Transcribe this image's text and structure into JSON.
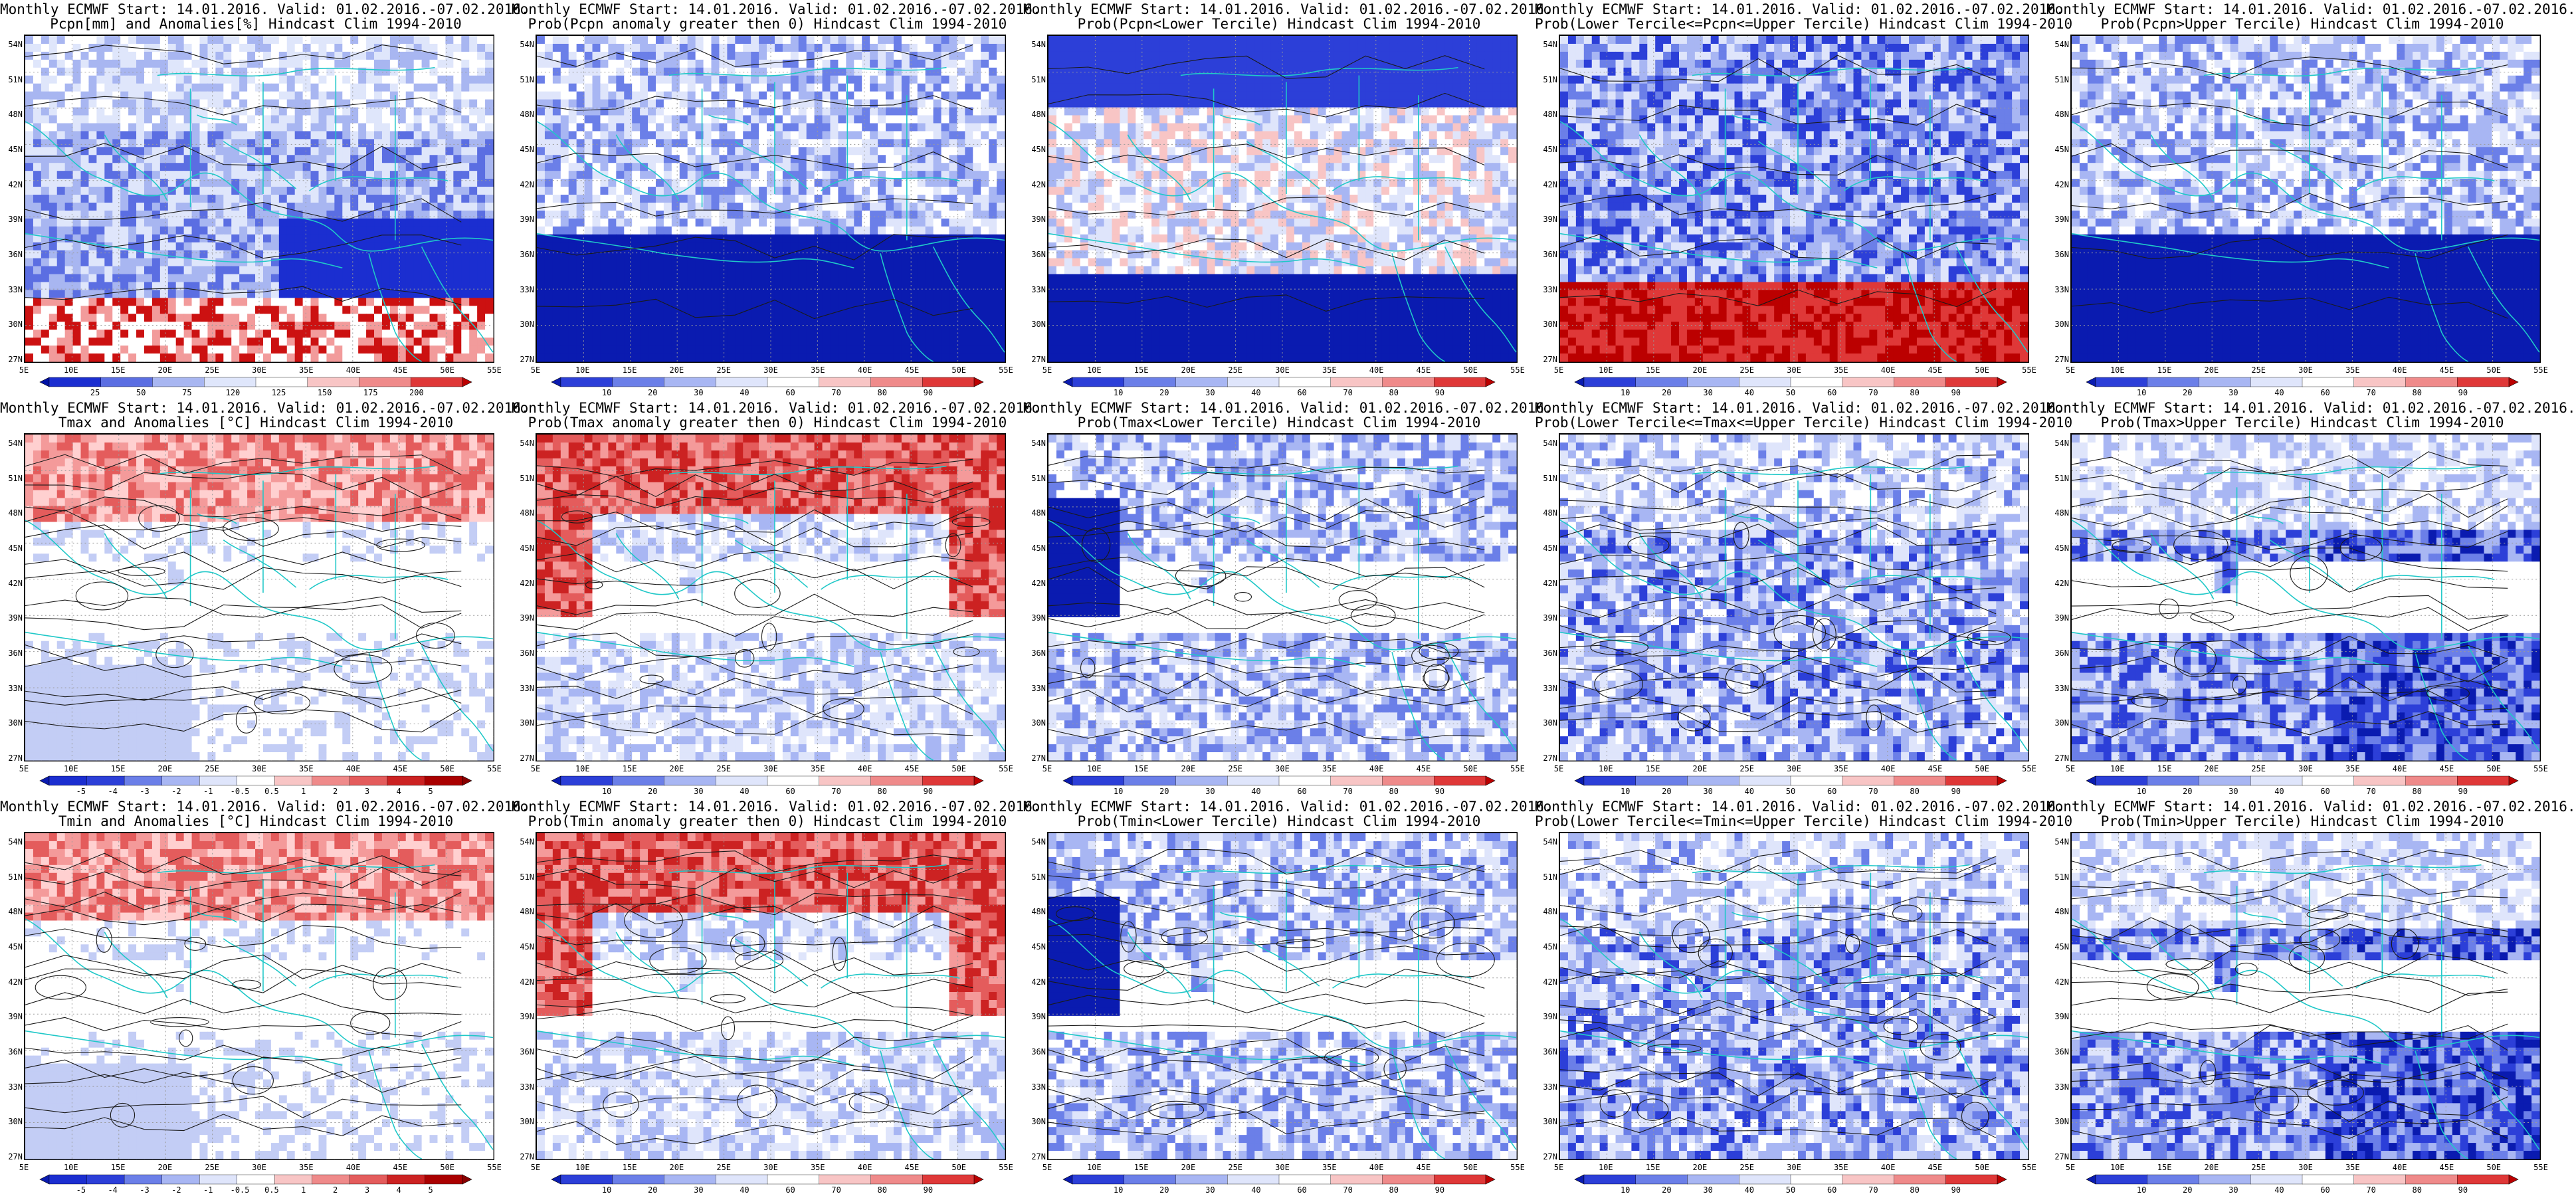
{
  "palettes": {
    "anom_precip": [
      "#ffffff",
      "#dfe6fb",
      "#a8b6f1",
      "#5b6ee2",
      "#1b2ed0",
      "#0012a6"
    ],
    "prob": [
      "#0a1bb0",
      "#2c3fd8",
      "#6b7fe8",
      "#a8b6f3",
      "#dfe5fb",
      "#ffffff",
      "#f8c5c5",
      "#ef8a8a",
      "#df3838",
      "#bb0000"
    ],
    "land_pos": [
      "#ffd0d0",
      "#f49a9a",
      "#e45c5c",
      "#cc2222"
    ],
    "lines": "#1a1a1a",
    "coast": "#20c8c8"
  },
  "lat_labels": [
    "54N",
    "51N",
    "48N",
    "45N",
    "42N",
    "39N",
    "36N",
    "33N",
    "30N",
    "27N"
  ],
  "lon_labels": [
    "5E",
    "10E",
    "15E",
    "20E",
    "25E",
    "30E",
    "35E",
    "40E",
    "45E",
    "50E",
    "55E"
  ],
  "panels": [
    {
      "title1": "Monthly ECMWF Start: 14.01.2016. Valid: 01.02.2016.-07.02.2016.",
      "title2": "Pcpn[mm] and Anomalies[%] Hindcast Clim 1994-2010",
      "type": "pcpn_anom",
      "cbar": [
        "25",
        "50",
        "75",
        "120",
        "125",
        "150",
        "175",
        "200"
      ]
    },
    {
      "title1": "Monthly ECMWF Start: 14.01.2016. Valid: 01.02.2016.-07.02.2016.",
      "title2": "Prob(Pcpn anomaly greater then 0) Hindcast Clim 1994-2010",
      "type": "prob_low",
      "cbar": [
        "10",
        "20",
        "30",
        "40",
        "60",
        "70",
        "80",
        "90"
      ]
    },
    {
      "title1": "Monthly ECMWF Start: 14.01.2016. Valid: 01.02.2016.-07.02.2016.",
      "title2": "Prob(Pcpn<Lower Tercile) Hindcast Clim 1994-2010",
      "type": "prob_lower_pcpn",
      "cbar": [
        "10",
        "20",
        "30",
        "40",
        "60",
        "70",
        "80",
        "90"
      ]
    },
    {
      "title1": "Monthly ECMWF Start: 14.01.2016. Valid: 01.02.2016.-07.02.2016.",
      "title2": "Prob(Lower Tercile<=Pcpn<=Upper Tercile) Hindcast Clim 1994-2010",
      "type": "prob_mid_pcpn",
      "cbar": [
        "10",
        "20",
        "30",
        "40",
        "50",
        "60",
        "70",
        "80",
        "90"
      ]
    },
    {
      "title1": "Monthly ECMWF Start: 14.01.2016. Valid: 01.02.2016.-07.02.2016.",
      "title2": "Prob(Pcpn>Upper Tercile) Hindcast Clim 1994-2010",
      "type": "prob_low",
      "cbar": [
        "10",
        "20",
        "30",
        "40",
        "60",
        "70",
        "80",
        "90"
      ]
    },
    {
      "title1": "Monthly ECMWF Start: 14.01.2016. Valid: 01.02.2016.-07.02.2016.",
      "title2": "Tmax and Anomalies [°C] Hindcast Clim 1994-2010",
      "type": "temp_anom",
      "cbar": [
        "-5",
        "-4",
        "-3",
        "-2",
        "-1",
        "-0.5",
        "0.5",
        "1",
        "2",
        "3",
        "4",
        "5"
      ]
    },
    {
      "title1": "Monthly ECMWF Start: 14.01.2016. Valid: 01.02.2016.-07.02.2016.",
      "title2": "Prob(Tmax anomaly greater then 0) Hindcast Clim 1994-2010",
      "type": "prob_high_north",
      "cbar": [
        "10",
        "20",
        "30",
        "40",
        "60",
        "70",
        "80",
        "90"
      ]
    },
    {
      "title1": "Monthly ECMWF Start: 14.01.2016. Valid: 01.02.2016.-07.02.2016.",
      "title2": "Prob(Tmax<Lower Tercile) Hindcast Clim 1994-2010",
      "type": "prob_lower_t",
      "cbar": [
        "10",
        "20",
        "30",
        "40",
        "60",
        "70",
        "80",
        "90"
      ]
    },
    {
      "title1": "Monthly ECMWF Start: 14.01.2016. Valid: 01.02.2016.-07.02.2016.",
      "title2": "Prob(Lower Tercile<=Tmax<=Upper Tercile) Hindcast Clim 1994-2010",
      "type": "prob_mid_t",
      "cbar": [
        "10",
        "20",
        "30",
        "40",
        "50",
        "60",
        "70",
        "80",
        "90"
      ]
    },
    {
      "title1": "Monthly ECMWF Start: 14.01.2016. Valid: 01.02.2016.-07.02.2016.",
      "title2": "Prob(Tmax>Upper Tercile) Hindcast Clim 1994-2010",
      "type": "prob_upper_t",
      "cbar": [
        "10",
        "20",
        "30",
        "40",
        "60",
        "70",
        "80",
        "90"
      ]
    },
    {
      "title1": "Monthly ECMWF Start: 14.01.2016. Valid: 01.02.2016.-07.02.2016.",
      "title2": "Tmin and Anomalies [°C] Hindcast Clim 1994-2010",
      "type": "temp_anom",
      "cbar": [
        "-5",
        "-4",
        "-3",
        "-2",
        "-1",
        "-0.5",
        "0.5",
        "1",
        "2",
        "3",
        "4",
        "5"
      ]
    },
    {
      "title1": "Monthly ECMWF Start: 14.01.2016. Valid: 01.02.2016.-07.02.2016.",
      "title2": "Prob(Tmin anomaly greater then 0) Hindcast Clim 1994-2010",
      "type": "prob_high_north",
      "cbar": [
        "10",
        "20",
        "30",
        "40",
        "60",
        "70",
        "80",
        "90"
      ]
    },
    {
      "title1": "Monthly ECMWF Start: 14.01.2016. Valid: 01.02.2016.-07.02.2016.",
      "title2": "Prob(Tmin<Lower Tercile) Hindcast Clim 1994-2010",
      "type": "prob_lower_t",
      "cbar": [
        "10",
        "20",
        "30",
        "40",
        "60",
        "70",
        "80",
        "90"
      ]
    },
    {
      "title1": "Monthly ECMWF Start: 14.01.2016. Valid: 01.02.2016.-07.02.2016.",
      "title2": "Prob(Lower Tercile<=Tmin<=Upper Tercile) Hindcast Clim 1994-2010",
      "type": "prob_mid_t",
      "cbar": [
        "10",
        "20",
        "30",
        "40",
        "50",
        "60",
        "70",
        "80",
        "90"
      ]
    },
    {
      "title1": "Monthly ECMWF Start: 14.01.2016. Valid: 01.02.2016.-07.02.2016.",
      "title2": "Prob(Tmin>Upper Tercile) Hindcast Clim 1994-2010",
      "type": "prob_upper_t",
      "cbar": [
        "10",
        "20",
        "30",
        "40",
        "60",
        "70",
        "80",
        "90"
      ]
    }
  ]
}
